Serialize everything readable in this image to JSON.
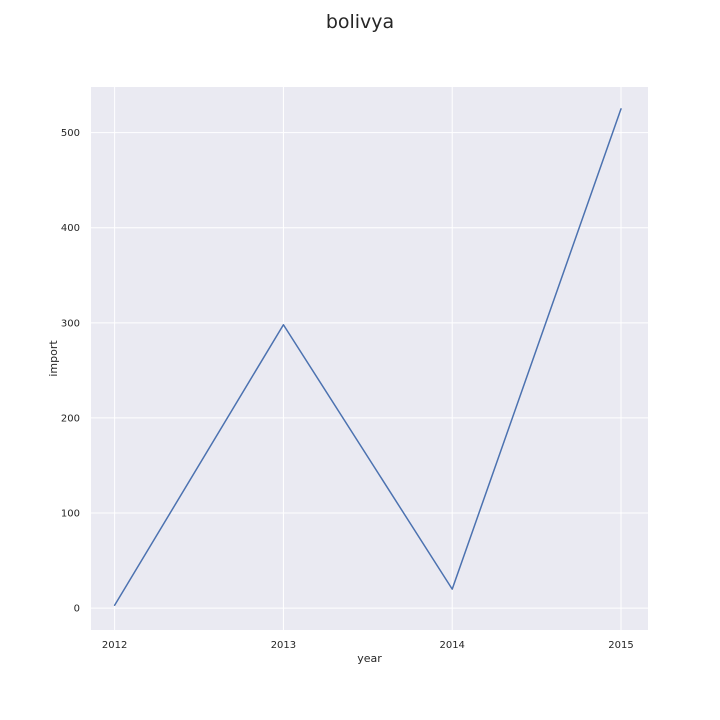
{
  "chart_data": {
    "type": "line",
    "title": "bolivya",
    "xlabel": "year",
    "ylabel": "import",
    "x": [
      2012,
      2013,
      2014,
      2015
    ],
    "x_tick_labels": [
      "2012",
      "2013",
      "2014",
      "2015"
    ],
    "xlim": [
      2011.86,
      2015.16
    ],
    "y_ticks": [
      0,
      100,
      200,
      300,
      400,
      500
    ],
    "y_tick_labels": [
      "0",
      "100",
      "200",
      "300",
      "400",
      "500"
    ],
    "ylim": [
      -23,
      548
    ],
    "series": [
      {
        "values": [
          3,
          298,
          20,
          525
        ],
        "color": "#4c72b0"
      }
    ],
    "grid": true,
    "plot_background": "#eaeaf2",
    "grid_color": "#ffffff"
  }
}
